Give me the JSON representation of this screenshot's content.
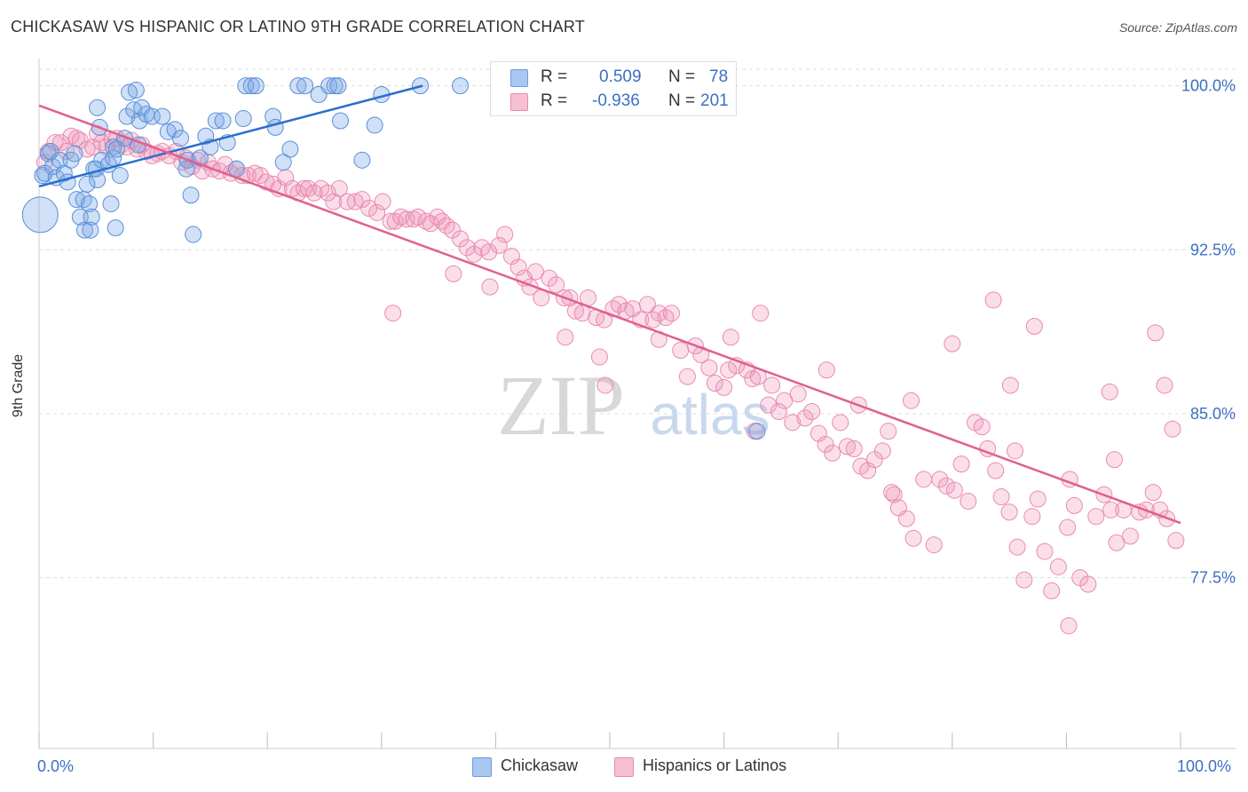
{
  "header": {
    "title": "CHICKASAW VS HISPANIC OR LATINO 9TH GRADE CORRELATION CHART",
    "source": "Source: ZipAtlas.com"
  },
  "legend_box": {
    "rows": [
      {
        "r_label": "R =",
        "r_value": "0.509",
        "n_label": "N =",
        "n_value": "78",
        "color": "#a9c7f0",
        "border": "#6a9ae0"
      },
      {
        "r_label": "R =",
        "r_value": "-0.936",
        "n_label": "N =",
        "n_value": "201",
        "color": "#f7c0d2",
        "border": "#ea8aac"
      }
    ]
  },
  "bottom_legend": [
    {
      "label": "Chickasaw",
      "color": "#a9c7f0",
      "border": "#6a9ae0"
    },
    {
      "label": "Hispanics or Latinos",
      "color": "#f7c0d2",
      "border": "#ea8aac"
    }
  ],
  "axis": {
    "x_left_label": "0.0%",
    "x_right_label": "100.0%",
    "y_label": "9th Grade"
  },
  "watermark": {
    "zip": "ZIP",
    "atlas": "atlas"
  },
  "colors": {
    "blue_fill": "rgba(120,165,230,0.35)",
    "blue_stroke": "#5b8fd8",
    "blue_line": "#2a6fcf",
    "pink_fill": "rgba(240,150,185,0.30)",
    "pink_stroke": "#ea8aac",
    "pink_line": "#e0608e",
    "grid": "#dddddd",
    "tick_label": "#3c6fc4"
  },
  "chart_data": {
    "type": "scatter",
    "title": "CHICKASAW VS HISPANIC OR LATINO 9TH GRADE CORRELATION CHART",
    "xlabel": "",
    "ylabel": "9th Grade",
    "xlim": [
      0,
      100
    ],
    "ylim": [
      70.5,
      101.0
    ],
    "y_ticks": [
      {
        "value": 100.0,
        "label": "100.0%"
      },
      {
        "value": 92.5,
        "label": "92.5%"
      },
      {
        "value": 85.0,
        "label": "85.0%"
      },
      {
        "value": 77.5,
        "label": "77.5%"
      }
    ],
    "x_ticks": [
      0,
      10,
      20,
      30,
      40,
      50,
      60,
      70,
      80,
      90,
      100
    ],
    "grid": true,
    "series": [
      {
        "name": "Chickasaw",
        "R": 0.509,
        "N": 78,
        "trend": {
          "x": [
            0,
            33.6
          ],
          "y": [
            95.4,
            100.0
          ]
        },
        "points": [
          [
            0.1,
            94.1
          ],
          [
            0.3,
            95.9
          ],
          [
            0.5,
            96.0
          ],
          [
            0.8,
            96.9
          ],
          [
            1.0,
            97.0
          ],
          [
            1.2,
            96.3
          ],
          [
            1.5,
            95.8
          ],
          [
            1.8,
            96.6
          ],
          [
            2.2,
            96.0
          ],
          [
            2.5,
            95.6
          ],
          [
            2.8,
            96.6
          ],
          [
            3.1,
            96.9
          ],
          [
            3.3,
            94.8
          ],
          [
            3.6,
            94.0
          ],
          [
            3.9,
            94.8
          ],
          [
            4.0,
            93.4
          ],
          [
            4.4,
            94.6
          ],
          [
            4.6,
            94.0
          ],
          [
            4.5,
            93.4
          ],
          [
            4.8,
            96.2
          ],
          [
            5.0,
            96.2
          ],
          [
            5.1,
            95.7
          ],
          [
            5.3,
            98.1
          ],
          [
            5.1,
            99.0
          ],
          [
            5.5,
            96.6
          ],
          [
            6.1,
            96.4
          ],
          [
            6.3,
            94.6
          ],
          [
            6.5,
            97.2
          ],
          [
            6.5,
            96.7
          ],
          [
            7.1,
            95.9
          ],
          [
            6.7,
            93.5
          ],
          [
            7.5,
            97.6
          ],
          [
            7.7,
            98.6
          ],
          [
            7.9,
            99.7
          ],
          [
            8.3,
            98.9
          ],
          [
            8.5,
            99.8
          ],
          [
            8.8,
            98.4
          ],
          [
            9.0,
            99.0
          ],
          [
            9.4,
            98.7
          ],
          [
            9.9,
            98.6
          ],
          [
            10.8,
            98.6
          ],
          [
            11.3,
            97.9
          ],
          [
            11.9,
            98.0
          ],
          [
            12.4,
            97.6
          ],
          [
            12.9,
            96.2
          ],
          [
            13.0,
            96.6
          ],
          [
            13.3,
            95.0
          ],
          [
            13.5,
            93.2
          ],
          [
            14.1,
            96.7
          ],
          [
            14.6,
            97.7
          ],
          [
            15.0,
            97.2
          ],
          [
            15.5,
            98.4
          ],
          [
            16.1,
            98.4
          ],
          [
            16.5,
            97.4
          ],
          [
            17.3,
            96.2
          ],
          [
            17.9,
            98.5
          ],
          [
            18.1,
            100.0
          ],
          [
            18.6,
            100.0
          ],
          [
            19.0,
            100.0
          ],
          [
            20.5,
            98.6
          ],
          [
            20.7,
            98.1
          ],
          [
            21.4,
            96.5
          ],
          [
            22.0,
            97.1
          ],
          [
            22.7,
            100.0
          ],
          [
            23.3,
            100.0
          ],
          [
            24.5,
            99.6
          ],
          [
            25.4,
            100.0
          ],
          [
            25.9,
            100.0
          ],
          [
            26.2,
            100.0
          ],
          [
            26.4,
            98.4
          ],
          [
            28.3,
            96.6
          ],
          [
            29.4,
            98.2
          ],
          [
            30.0,
            99.6
          ],
          [
            33.4,
            100.0
          ],
          [
            36.9,
            100.0
          ],
          [
            8.7,
            97.3
          ],
          [
            6.8,
            97.1
          ],
          [
            4.2,
            95.5
          ],
          [
            62.9,
            84.2
          ]
        ]
      },
      {
        "name": "Hispanics or Latinos",
        "R": -0.936,
        "N": 201,
        "trend": {
          "x": [
            0,
            100
          ],
          "y": [
            99.1,
            80.0
          ]
        },
        "points": [
          [
            0.5,
            96.5
          ],
          [
            0.8,
            97.0
          ],
          [
            1.4,
            97.4
          ],
          [
            1.9,
            97.4
          ],
          [
            2.4,
            97.0
          ],
          [
            2.8,
            97.7
          ],
          [
            3.3,
            97.6
          ],
          [
            3.6,
            97.5
          ],
          [
            4.2,
            97.1
          ],
          [
            4.7,
            97.2
          ],
          [
            5.1,
            97.8
          ],
          [
            5.5,
            97.4
          ],
          [
            5.9,
            97.2
          ],
          [
            6.4,
            97.5
          ],
          [
            6.8,
            97.6
          ],
          [
            7.2,
            97.3
          ],
          [
            7.7,
            97.2
          ],
          [
            8.1,
            97.5
          ],
          [
            8.6,
            97.1
          ],
          [
            9.0,
            97.3
          ],
          [
            9.4,
            97.0
          ],
          [
            9.9,
            96.8
          ],
          [
            10.4,
            96.9
          ],
          [
            10.8,
            97.0
          ],
          [
            11.4,
            96.8
          ],
          [
            12.0,
            97.0
          ],
          [
            12.5,
            96.5
          ],
          [
            12.9,
            96.7
          ],
          [
            13.4,
            96.3
          ],
          [
            13.9,
            96.6
          ],
          [
            14.3,
            96.1
          ],
          [
            14.8,
            96.5
          ],
          [
            15.2,
            96.2
          ],
          [
            15.8,
            96.1
          ],
          [
            16.3,
            96.4
          ],
          [
            16.8,
            96.0
          ],
          [
            17.3,
            96.2
          ],
          [
            17.8,
            95.9
          ],
          [
            18.3,
            95.9
          ],
          [
            18.9,
            96.0
          ],
          [
            19.4,
            95.9
          ],
          [
            19.9,
            95.6
          ],
          [
            20.5,
            95.5
          ],
          [
            21.0,
            95.3
          ],
          [
            21.6,
            95.8
          ],
          [
            22.2,
            95.3
          ],
          [
            22.7,
            95.1
          ],
          [
            23.2,
            95.3
          ],
          [
            23.6,
            95.3
          ],
          [
            24.1,
            95.1
          ],
          [
            24.7,
            95.3
          ],
          [
            25.3,
            95.1
          ],
          [
            25.8,
            94.7
          ],
          [
            26.3,
            95.3
          ],
          [
            27.0,
            94.7
          ],
          [
            27.7,
            94.7
          ],
          [
            28.3,
            94.8
          ],
          [
            28.9,
            94.4
          ],
          [
            29.6,
            94.2
          ],
          [
            30.1,
            94.7
          ],
          [
            30.8,
            93.8
          ],
          [
            31.2,
            93.8
          ],
          [
            31.7,
            94.0
          ],
          [
            32.2,
            93.9
          ],
          [
            32.8,
            93.9
          ],
          [
            33.2,
            94.0
          ],
          [
            33.9,
            93.8
          ],
          [
            34.3,
            93.7
          ],
          [
            34.9,
            94.0
          ],
          [
            35.3,
            93.8
          ],
          [
            35.7,
            93.6
          ],
          [
            36.2,
            93.4
          ],
          [
            36.9,
            93.0
          ],
          [
            37.5,
            92.6
          ],
          [
            38.1,
            92.3
          ],
          [
            38.8,
            92.6
          ],
          [
            39.4,
            92.4
          ],
          [
            40.3,
            92.7
          ],
          [
            40.8,
            93.2
          ],
          [
            41.4,
            92.2
          ],
          [
            42.0,
            91.7
          ],
          [
            42.5,
            91.2
          ],
          [
            43.0,
            90.8
          ],
          [
            43.5,
            91.5
          ],
          [
            44.0,
            90.3
          ],
          [
            44.7,
            91.2
          ],
          [
            45.3,
            90.9
          ],
          [
            46.0,
            90.3
          ],
          [
            46.5,
            90.3
          ],
          [
            47.0,
            89.7
          ],
          [
            47.6,
            89.6
          ],
          [
            48.1,
            90.3
          ],
          [
            48.8,
            89.4
          ],
          [
            49.5,
            89.3
          ],
          [
            50.3,
            89.8
          ],
          [
            50.8,
            90.0
          ],
          [
            51.4,
            89.7
          ],
          [
            52.0,
            89.8
          ],
          [
            52.7,
            89.3
          ],
          [
            53.3,
            90.0
          ],
          [
            53.8,
            89.3
          ],
          [
            54.3,
            89.6
          ],
          [
            54.9,
            89.4
          ],
          [
            55.4,
            89.6
          ],
          [
            56.2,
            87.9
          ],
          [
            56.8,
            86.7
          ],
          [
            57.5,
            88.1
          ],
          [
            58.0,
            87.7
          ],
          [
            58.7,
            87.1
          ],
          [
            59.2,
            86.4
          ],
          [
            60.0,
            86.2
          ],
          [
            60.6,
            88.5
          ],
          [
            61.1,
            87.2
          ],
          [
            62.0,
            87.0
          ],
          [
            62.5,
            86.6
          ],
          [
            63.0,
            86.7
          ],
          [
            63.9,
            85.4
          ],
          [
            64.2,
            86.3
          ],
          [
            64.8,
            85.1
          ],
          [
            65.3,
            85.6
          ],
          [
            66.0,
            84.6
          ],
          [
            66.5,
            85.9
          ],
          [
            67.1,
            84.8
          ],
          [
            67.7,
            85.1
          ],
          [
            68.3,
            84.1
          ],
          [
            68.9,
            83.6
          ],
          [
            69.5,
            83.2
          ],
          [
            70.2,
            84.6
          ],
          [
            70.8,
            83.5
          ],
          [
            71.4,
            83.4
          ],
          [
            72.0,
            82.6
          ],
          [
            72.6,
            82.4
          ],
          [
            73.2,
            82.9
          ],
          [
            73.9,
            83.3
          ],
          [
            74.4,
            84.2
          ],
          [
            74.9,
            81.3
          ],
          [
            75.3,
            80.7
          ],
          [
            76.0,
            80.2
          ],
          [
            76.6,
            79.3
          ],
          [
            77.5,
            82.0
          ],
          [
            78.4,
            79.0
          ],
          [
            78.9,
            82.0
          ],
          [
            79.5,
            81.7
          ],
          [
            80.2,
            81.5
          ],
          [
            80.8,
            82.7
          ],
          [
            81.4,
            81.0
          ],
          [
            82.0,
            84.6
          ],
          [
            82.6,
            84.4
          ],
          [
            83.1,
            83.4
          ],
          [
            83.8,
            82.4
          ],
          [
            84.3,
            81.2
          ],
          [
            85.0,
            80.5
          ],
          [
            85.7,
            78.9
          ],
          [
            86.3,
            77.4
          ],
          [
            87.0,
            80.3
          ],
          [
            87.5,
            81.1
          ],
          [
            88.1,
            78.7
          ],
          [
            88.7,
            76.9
          ],
          [
            89.3,
            78.0
          ],
          [
            90.1,
            79.8
          ],
          [
            90.7,
            80.8
          ],
          [
            91.2,
            77.5
          ],
          [
            91.9,
            77.2
          ],
          [
            92.6,
            80.3
          ],
          [
            93.3,
            81.3
          ],
          [
            93.9,
            80.6
          ],
          [
            94.4,
            79.1
          ],
          [
            95.0,
            80.6
          ],
          [
            95.6,
            79.4
          ],
          [
            96.4,
            80.5
          ],
          [
            97.0,
            80.6
          ],
          [
            97.6,
            81.4
          ],
          [
            98.2,
            80.6
          ],
          [
            98.8,
            80.2
          ],
          [
            99.3,
            84.3
          ],
          [
            99.6,
            79.2
          ],
          [
            36.3,
            91.4
          ],
          [
            46.1,
            88.5
          ],
          [
            49.1,
            87.6
          ],
          [
            54.3,
            88.4
          ],
          [
            63.2,
            89.6
          ],
          [
            71.8,
            85.4
          ],
          [
            80.0,
            88.2
          ],
          [
            83.6,
            90.2
          ],
          [
            85.5,
            83.3
          ],
          [
            87.2,
            89.0
          ],
          [
            90.3,
            82.0
          ],
          [
            94.2,
            82.9
          ],
          [
            97.8,
            88.7
          ],
          [
            98.6,
            86.3
          ],
          [
            90.2,
            75.3
          ],
          [
            31.0,
            89.6
          ],
          [
            60.4,
            87.0
          ],
          [
            69.0,
            87.0
          ],
          [
            76.4,
            85.6
          ],
          [
            85.1,
            86.3
          ],
          [
            93.8,
            86.0
          ],
          [
            39.5,
            90.8
          ],
          [
            49.6,
            86.3
          ],
          [
            62.7,
            84.2
          ],
          [
            74.7,
            81.4
          ]
        ]
      }
    ]
  }
}
